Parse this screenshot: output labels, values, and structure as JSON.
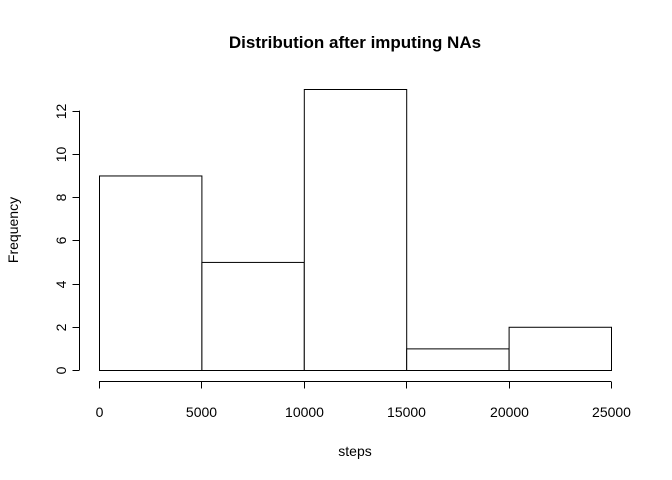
{
  "chart_data": {
    "type": "bar",
    "title": "Distribution after imputing NAs",
    "xlabel": "steps",
    "ylabel": "Frequency",
    "bins": [
      {
        "from": 0,
        "to": 5000,
        "count": 9
      },
      {
        "from": 5000,
        "to": 10000,
        "count": 5
      },
      {
        "from": 10000,
        "to": 15000,
        "count": 13
      },
      {
        "from": 15000,
        "to": 20000,
        "count": 1
      },
      {
        "from": 20000,
        "to": 25000,
        "count": 2
      }
    ],
    "xlim": [
      0,
      25000
    ],
    "ylim": [
      0,
      13
    ],
    "x_ticks": [
      0,
      5000,
      10000,
      15000,
      20000,
      25000
    ],
    "y_ticks": [
      0,
      2,
      4,
      6,
      8,
      10,
      12
    ],
    "grid": false,
    "colors": {
      "bar_fill": "#ffffff",
      "bar_stroke": "#000000"
    }
  }
}
